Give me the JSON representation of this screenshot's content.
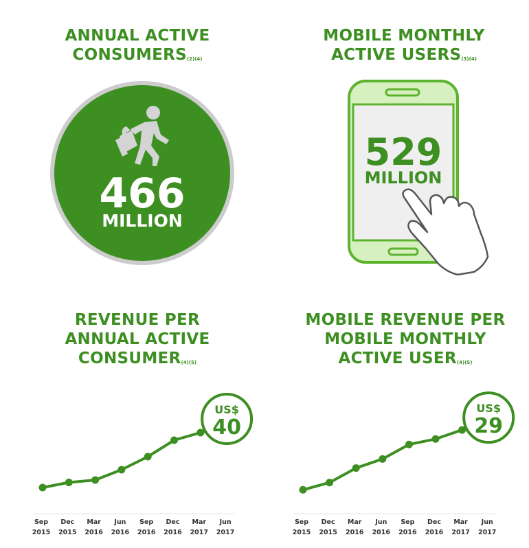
{
  "colors": {
    "green": "#3d8f22",
    "green_light": "#6fbf3c",
    "gray": "#bdbdbd",
    "icon_gray": "#d2d2d2",
    "screen": "#efefef"
  },
  "consumers": {
    "title_line1": "ANNUAL ACTIVE",
    "title_line2": "CONSUMERS",
    "footnote": "(2)(4)",
    "value": "466",
    "unit": "MILLION",
    "icon": "shopper-walking-icon"
  },
  "mobile_users": {
    "title_line1": "MOBILE MONTHLY",
    "title_line2": "ACTIVE USERS",
    "footnote": "(3)(4)",
    "value": "529",
    "unit": "MILLION",
    "icon": "smartphone-tap-icon"
  },
  "chart_data": [
    {
      "type": "line",
      "title_line1": "REVENUE PER",
      "title_line2": "ANNUAL ACTIVE",
      "title_line3": "CONSUMER",
      "footnote": "(4)(5)",
      "categories": [
        {
          "month": "Sep",
          "year": "2015"
        },
        {
          "month": "Dec",
          "year": "2015"
        },
        {
          "month": "Mar",
          "year": "2016"
        },
        {
          "month": "Jun",
          "year": "2016"
        },
        {
          "month": "Sep",
          "year": "2016"
        },
        {
          "month": "Dec",
          "year": "2016"
        },
        {
          "month": "Mar",
          "year": "2017"
        },
        {
          "month": "Jun",
          "year": "2017"
        }
      ],
      "values": [
        22.0,
        23.5,
        24.2,
        27.2,
        31.0,
        35.8,
        38.0,
        40.0
      ],
      "ylim": [
        15,
        52
      ],
      "callout_currency": "US$",
      "callout_value": "40",
      "grid": false
    },
    {
      "type": "line",
      "title_line1": "MOBILE REVENUE PER",
      "title_line2": "MOBILE MONTHLY",
      "title_line3": "ACTIVE USER",
      "footnote": "(4)(5)",
      "categories": [
        {
          "month": "Sep",
          "year": "2015"
        },
        {
          "month": "Dec",
          "year": "2015"
        },
        {
          "month": "Mar",
          "year": "2016"
        },
        {
          "month": "Jun",
          "year": "2016"
        },
        {
          "month": "Sep",
          "year": "2016"
        },
        {
          "month": "Dec",
          "year": "2016"
        },
        {
          "month": "Mar",
          "year": "2017"
        },
        {
          "month": "Jun",
          "year": "2017"
        }
      ],
      "values": [
        11.0,
        13.0,
        17.0,
        19.5,
        23.5,
        25.0,
        27.5,
        29.0
      ],
      "ylim": [
        5,
        40
      ],
      "callout_currency": "US$",
      "callout_value": "29",
      "grid": false
    }
  ]
}
